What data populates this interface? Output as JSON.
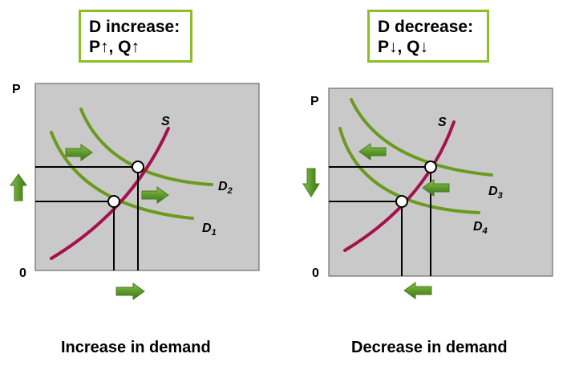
{
  "panels": [
    {
      "callout": {
        "line1": "D increase:",
        "line2": "P↑, Q↑"
      },
      "axis": {
        "y_label": "P",
        "origin_label": "0"
      },
      "curves": {
        "supply": {
          "label": "S"
        },
        "demand_a": {
          "letter": "D",
          "sub": "1"
        },
        "demand_b": {
          "letter": "D",
          "sub": "2"
        }
      },
      "caption": "Increase in demand",
      "shift_direction": "right",
      "price_change": "up",
      "quantity_change": "up"
    },
    {
      "callout": {
        "line1": "D decrease:",
        "line2": "P↓, Q↓"
      },
      "axis": {
        "y_label": "P",
        "origin_label": "0"
      },
      "curves": {
        "supply": {
          "label": "S"
        },
        "demand_a": {
          "letter": "D",
          "sub": "3"
        },
        "demand_b": {
          "letter": "D",
          "sub": "4"
        }
      },
      "caption": "Decrease in demand",
      "shift_direction": "left",
      "price_change": "down",
      "quantity_change": "down"
    }
  ],
  "colors": {
    "plot_background": "#c9c9c9",
    "supply_curve": "#a5114c",
    "demand_curve": "#6c9a1f",
    "arrow": "#5e9a2c",
    "callout_border": "#8cbf26"
  }
}
